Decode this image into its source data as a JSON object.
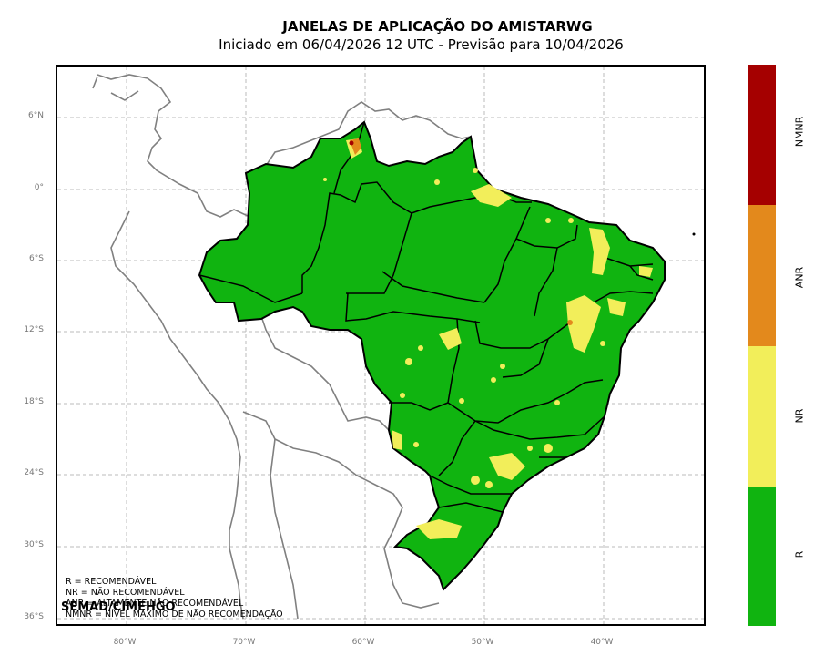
{
  "title": "JANELAS DE APLICAÇÃO DO AMISTARWG",
  "subtitle": "Iniciado em 06/04/2026 12 UTC - Previsão para 10/04/2026",
  "lat_ticks": [
    "6°N",
    "0°",
    "6°S",
    "12°S",
    "18°S",
    "24°S",
    "30°S",
    "36°S"
  ],
  "lon_ticks": [
    "80°W",
    "70°W",
    "60°W",
    "50°W",
    "40°W"
  ],
  "legend_lines": [
    "R = RECOMENDÁVEL",
    "NR = NÃO RECOMENDÁVEL",
    "ANR = ALTAMENTE NÃO RECOMENDÁVEL",
    "NMNR = NÍVEL MÁXIMO DE NÃO RECOMENDAÇÃO"
  ],
  "credit": "SEMAD/CIMEHGO",
  "colorbar": [
    {
      "label": "NMNR",
      "color": "#a50000"
    },
    {
      "label": "ANR",
      "color": "#e3891c"
    },
    {
      "label": "NR",
      "color": "#f2ee5a"
    },
    {
      "label": "R",
      "color": "#10b410"
    }
  ]
}
